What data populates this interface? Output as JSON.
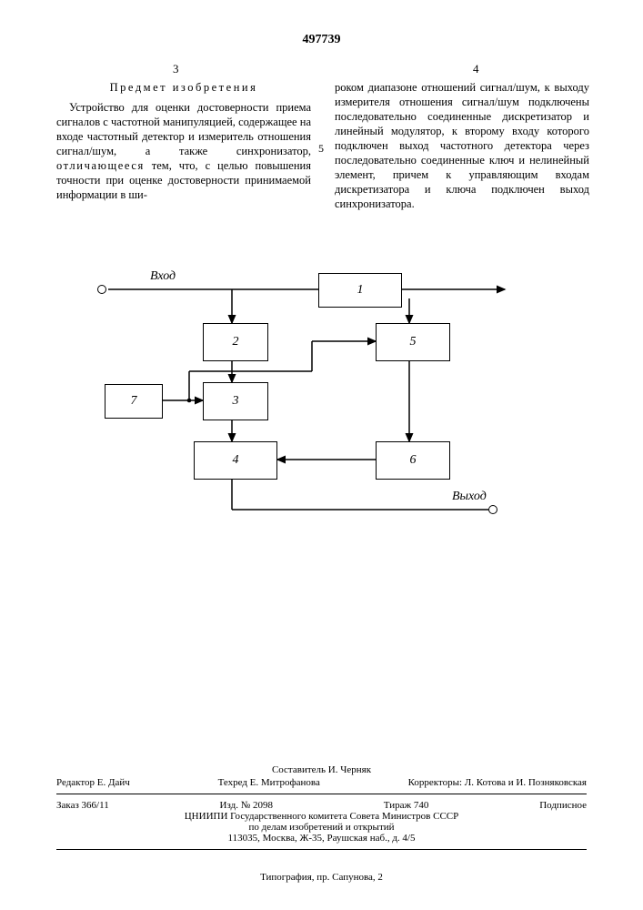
{
  "docNumber": "497739",
  "pageLeft": "3",
  "pageRight": "4",
  "marginNumber": "5",
  "heading": "Предмет изобретения",
  "leftParagraph": "Устройство для оценки достоверности приема сигналов с частотной манипуляцией, содержащее на входе частотный детектор и измеритель отношения сигнал/шум, а также синхронизатор, <span class=\"spaced\">отличающееся</span> тем, что, с целью повышения точности при оценке достоверности принимаемой информации в ши-",
  "rightParagraph": "роком диапазоне отношений сигнал/шум, к выходу измерителя отношения сигнал/шум подключены последовательно соединенные дискретизатор и линейный модулятор, к второму входу которого подключен выход частотного детектора через последовательно соединенные ключ и нелинейный элемент, причем к управляющим входам дискретизатора и ключа подключен выход синхронизатора.",
  "diagram": {
    "inLabel": "Вход",
    "outLabel": "Выход",
    "nodes": {
      "b1": "1",
      "b2": "2",
      "b3": "3",
      "b4": "4",
      "b5": "5",
      "b6": "6",
      "b7": "7"
    }
  },
  "footer": {
    "compiler": "Составитель И. Черняк",
    "editor": "Редактор Е. Дайч",
    "tech": "Техред Е. Митрофанова",
    "proof": "Корректоры: Л. Котова и И. Позняковская",
    "order": "Заказ 366/11",
    "izd": "Изд. № 2098",
    "tirage": "Тираж 740",
    "subs": "Подписное",
    "org1": "ЦНИИПИ Государственного комитета Совета Министров СССР",
    "org2": "по делам изобретений и открытий",
    "addr": "113035, Москва, Ж-35, Раушская наб., д. 4/5",
    "typo": "Типография, пр. Сапунова, 2"
  }
}
